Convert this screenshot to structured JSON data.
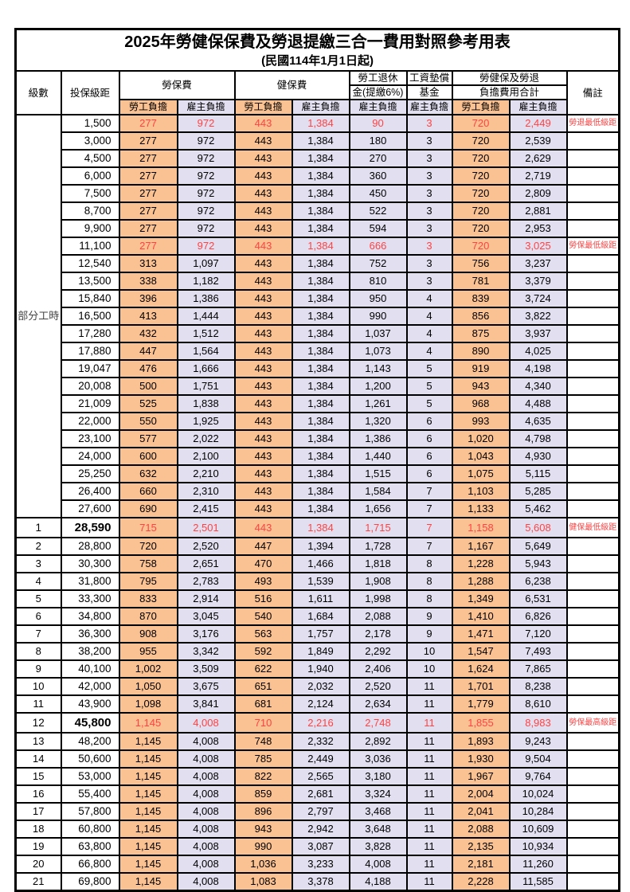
{
  "title": "2025年勞健保保費及勞退提繳三合一費用對照參考用表",
  "subtitle": "(民國114年1月1日起)",
  "colors": {
    "employee_bg": "#FAC192",
    "employer_bg": "#E2DFF0",
    "highlight_text": "#FF4343",
    "border": "#000000"
  },
  "header": {
    "level": "級數",
    "bracket": "投保級距",
    "labor_insurance": "勞保費",
    "health_insurance": "健保費",
    "pension_line1": "勞工退休",
    "pension_line2": "金(提繳6%)",
    "wage_fund_line1": "工資墊償",
    "wage_fund_line2": "基金",
    "total_line1": "勞健保及勞退",
    "total_line2": "負擔費用合計",
    "remarks": "備註",
    "employee_label": "勞工負擔",
    "employer_label": "雇主負擔"
  },
  "part_time_label": "部分工時",
  "part_time_rowspan": 23,
  "rows": [
    {
      "level": null,
      "bracket": "1,500",
      "fees": [
        "277",
        "972",
        "443",
        "1,384",
        "90",
        "3",
        "720",
        "2,449"
      ],
      "red": true,
      "bold": false,
      "remark": "勞退最低級距"
    },
    {
      "level": null,
      "bracket": "3,000",
      "fees": [
        "277",
        "972",
        "443",
        "1,384",
        "180",
        "3",
        "720",
        "2,539"
      ],
      "red": false,
      "bold": false,
      "remark": ""
    },
    {
      "level": null,
      "bracket": "4,500",
      "fees": [
        "277",
        "972",
        "443",
        "1,384",
        "270",
        "3",
        "720",
        "2,629"
      ],
      "red": false,
      "bold": false,
      "remark": ""
    },
    {
      "level": null,
      "bracket": "6,000",
      "fees": [
        "277",
        "972",
        "443",
        "1,384",
        "360",
        "3",
        "720",
        "2,719"
      ],
      "red": false,
      "bold": false,
      "remark": ""
    },
    {
      "level": null,
      "bracket": "7,500",
      "fees": [
        "277",
        "972",
        "443",
        "1,384",
        "450",
        "3",
        "720",
        "2,809"
      ],
      "red": false,
      "bold": false,
      "remark": ""
    },
    {
      "level": null,
      "bracket": "8,700",
      "fees": [
        "277",
        "972",
        "443",
        "1,384",
        "522",
        "3",
        "720",
        "2,881"
      ],
      "red": false,
      "bold": false,
      "remark": ""
    },
    {
      "level": null,
      "bracket": "9,900",
      "fees": [
        "277",
        "972",
        "443",
        "1,384",
        "594",
        "3",
        "720",
        "2,953"
      ],
      "red": false,
      "bold": false,
      "remark": ""
    },
    {
      "level": null,
      "bracket": "11,100",
      "fees": [
        "277",
        "972",
        "443",
        "1,384",
        "666",
        "3",
        "720",
        "3,025"
      ],
      "red": true,
      "bold": false,
      "remark": "勞保最低級距"
    },
    {
      "level": null,
      "bracket": "12,540",
      "fees": [
        "313",
        "1,097",
        "443",
        "1,384",
        "752",
        "3",
        "756",
        "3,237"
      ],
      "red": false,
      "bold": false,
      "remark": ""
    },
    {
      "level": null,
      "bracket": "13,500",
      "fees": [
        "338",
        "1,182",
        "443",
        "1,384",
        "810",
        "3",
        "781",
        "3,379"
      ],
      "red": false,
      "bold": false,
      "remark": ""
    },
    {
      "level": null,
      "bracket": "15,840",
      "fees": [
        "396",
        "1,386",
        "443",
        "1,384",
        "950",
        "4",
        "839",
        "3,724"
      ],
      "red": false,
      "bold": false,
      "remark": ""
    },
    {
      "level": null,
      "bracket": "16,500",
      "fees": [
        "413",
        "1,444",
        "443",
        "1,384",
        "990",
        "4",
        "856",
        "3,822"
      ],
      "red": false,
      "bold": false,
      "remark": ""
    },
    {
      "level": null,
      "bracket": "17,280",
      "fees": [
        "432",
        "1,512",
        "443",
        "1,384",
        "1,037",
        "4",
        "875",
        "3,937"
      ],
      "red": false,
      "bold": false,
      "remark": ""
    },
    {
      "level": null,
      "bracket": "17,880",
      "fees": [
        "447",
        "1,564",
        "443",
        "1,384",
        "1,073",
        "4",
        "890",
        "4,025"
      ],
      "red": false,
      "bold": false,
      "remark": ""
    },
    {
      "level": null,
      "bracket": "19,047",
      "fees": [
        "476",
        "1,666",
        "443",
        "1,384",
        "1,143",
        "5",
        "919",
        "4,198"
      ],
      "red": false,
      "bold": false,
      "remark": ""
    },
    {
      "level": null,
      "bracket": "20,008",
      "fees": [
        "500",
        "1,751",
        "443",
        "1,384",
        "1,200",
        "5",
        "943",
        "4,340"
      ],
      "red": false,
      "bold": false,
      "remark": ""
    },
    {
      "level": null,
      "bracket": "21,009",
      "fees": [
        "525",
        "1,838",
        "443",
        "1,384",
        "1,261",
        "5",
        "968",
        "4,488"
      ],
      "red": false,
      "bold": false,
      "remark": ""
    },
    {
      "level": null,
      "bracket": "22,000",
      "fees": [
        "550",
        "1,925",
        "443",
        "1,384",
        "1,320",
        "6",
        "993",
        "4,635"
      ],
      "red": false,
      "bold": false,
      "remark": ""
    },
    {
      "level": null,
      "bracket": "23,100",
      "fees": [
        "577",
        "2,022",
        "443",
        "1,384",
        "1,386",
        "6",
        "1,020",
        "4,798"
      ],
      "red": false,
      "bold": false,
      "remark": ""
    },
    {
      "level": null,
      "bracket": "24,000",
      "fees": [
        "600",
        "2,100",
        "443",
        "1,384",
        "1,440",
        "6",
        "1,043",
        "4,930"
      ],
      "red": false,
      "bold": false,
      "remark": ""
    },
    {
      "level": null,
      "bracket": "25,250",
      "fees": [
        "632",
        "2,210",
        "443",
        "1,384",
        "1,515",
        "6",
        "1,075",
        "5,115"
      ],
      "red": false,
      "bold": false,
      "remark": ""
    },
    {
      "level": null,
      "bracket": "26,400",
      "fees": [
        "660",
        "2,310",
        "443",
        "1,384",
        "1,584",
        "7",
        "1,103",
        "5,285"
      ],
      "red": false,
      "bold": false,
      "remark": ""
    },
    {
      "level": null,
      "bracket": "27,600",
      "fees": [
        "690",
        "2,415",
        "443",
        "1,384",
        "1,656",
        "7",
        "1,133",
        "5,462"
      ],
      "red": false,
      "bold": false,
      "remark": ""
    },
    {
      "level": "1",
      "bracket": "28,590",
      "fees": [
        "715",
        "2,501",
        "443",
        "1,384",
        "1,715",
        "7",
        "1,158",
        "5,608"
      ],
      "red": true,
      "bold": true,
      "remark": "健保最低級距"
    },
    {
      "level": "2",
      "bracket": "28,800",
      "fees": [
        "720",
        "2,520",
        "447",
        "1,394",
        "1,728",
        "7",
        "1,167",
        "5,649"
      ],
      "red": false,
      "bold": false,
      "remark": ""
    },
    {
      "level": "3",
      "bracket": "30,300",
      "fees": [
        "758",
        "2,651",
        "470",
        "1,466",
        "1,818",
        "8",
        "1,228",
        "5,943"
      ],
      "red": false,
      "bold": false,
      "remark": ""
    },
    {
      "level": "4",
      "bracket": "31,800",
      "fees": [
        "795",
        "2,783",
        "493",
        "1,539",
        "1,908",
        "8",
        "1,288",
        "6,238"
      ],
      "red": false,
      "bold": false,
      "remark": ""
    },
    {
      "level": "5",
      "bracket": "33,300",
      "fees": [
        "833",
        "2,914",
        "516",
        "1,611",
        "1,998",
        "8",
        "1,349",
        "6,531"
      ],
      "red": false,
      "bold": false,
      "remark": ""
    },
    {
      "level": "6",
      "bracket": "34,800",
      "fees": [
        "870",
        "3,045",
        "540",
        "1,684",
        "2,088",
        "9",
        "1,410",
        "6,826"
      ],
      "red": false,
      "bold": false,
      "remark": ""
    },
    {
      "level": "7",
      "bracket": "36,300",
      "fees": [
        "908",
        "3,176",
        "563",
        "1,757",
        "2,178",
        "9",
        "1,471",
        "7,120"
      ],
      "red": false,
      "bold": false,
      "remark": ""
    },
    {
      "level": "8",
      "bracket": "38,200",
      "fees": [
        "955",
        "3,342",
        "592",
        "1,849",
        "2,292",
        "10",
        "1,547",
        "7,493"
      ],
      "red": false,
      "bold": false,
      "remark": ""
    },
    {
      "level": "9",
      "bracket": "40,100",
      "fees": [
        "1,002",
        "3,509",
        "622",
        "1,940",
        "2,406",
        "10",
        "1,624",
        "7,865"
      ],
      "red": false,
      "bold": false,
      "remark": ""
    },
    {
      "level": "10",
      "bracket": "42,000",
      "fees": [
        "1,050",
        "3,675",
        "651",
        "2,032",
        "2,520",
        "11",
        "1,701",
        "8,238"
      ],
      "red": false,
      "bold": false,
      "remark": ""
    },
    {
      "level": "11",
      "bracket": "43,900",
      "fees": [
        "1,098",
        "3,841",
        "681",
        "2,124",
        "2,634",
        "11",
        "1,779",
        "8,610"
      ],
      "red": false,
      "bold": false,
      "remark": ""
    },
    {
      "level": "12",
      "bracket": "45,800",
      "fees": [
        "1,145",
        "4,008",
        "710",
        "2,216",
        "2,748",
        "11",
        "1,855",
        "8,983"
      ],
      "red": true,
      "bold": true,
      "remark": "勞保最高級距"
    },
    {
      "level": "13",
      "bracket": "48,200",
      "fees": [
        "1,145",
        "4,008",
        "748",
        "2,332",
        "2,892",
        "11",
        "1,893",
        "9,243"
      ],
      "red": false,
      "bold": false,
      "remark": ""
    },
    {
      "level": "14",
      "bracket": "50,600",
      "fees": [
        "1,145",
        "4,008",
        "785",
        "2,449",
        "3,036",
        "11",
        "1,930",
        "9,504"
      ],
      "red": false,
      "bold": false,
      "remark": ""
    },
    {
      "level": "15",
      "bracket": "53,000",
      "fees": [
        "1,145",
        "4,008",
        "822",
        "2,565",
        "3,180",
        "11",
        "1,967",
        "9,764"
      ],
      "red": false,
      "bold": false,
      "remark": ""
    },
    {
      "level": "16",
      "bracket": "55,400",
      "fees": [
        "1,145",
        "4,008",
        "859",
        "2,681",
        "3,324",
        "11",
        "2,004",
        "10,024"
      ],
      "red": false,
      "bold": false,
      "remark": ""
    },
    {
      "level": "17",
      "bracket": "57,800",
      "fees": [
        "1,145",
        "4,008",
        "896",
        "2,797",
        "3,468",
        "11",
        "2,041",
        "10,284"
      ],
      "red": false,
      "bold": false,
      "remark": ""
    },
    {
      "level": "18",
      "bracket": "60,800",
      "fees": [
        "1,145",
        "4,008",
        "943",
        "2,942",
        "3,648",
        "11",
        "2,088",
        "10,609"
      ],
      "red": false,
      "bold": false,
      "remark": ""
    },
    {
      "level": "19",
      "bracket": "63,800",
      "fees": [
        "1,145",
        "4,008",
        "990",
        "3,087",
        "3,828",
        "11",
        "2,135",
        "10,934"
      ],
      "red": false,
      "bold": false,
      "remark": ""
    },
    {
      "level": "20",
      "bracket": "66,800",
      "fees": [
        "1,145",
        "4,008",
        "1,036",
        "3,233",
        "4,008",
        "11",
        "2,181",
        "11,260"
      ],
      "red": false,
      "bold": false,
      "remark": ""
    },
    {
      "level": "21",
      "bracket": "69,800",
      "fees": [
        "1,145",
        "4,008",
        "1,083",
        "3,378",
        "4,188",
        "11",
        "2,228",
        "11,585"
      ],
      "red": false,
      "bold": false,
      "remark": ""
    }
  ]
}
